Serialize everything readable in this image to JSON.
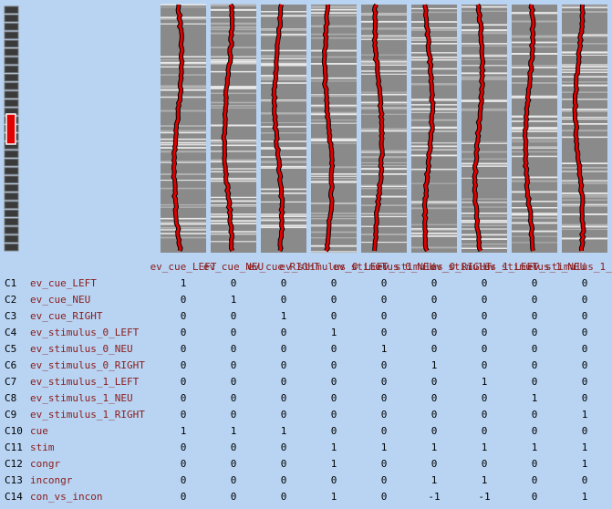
{
  "columns": [
    "ev_cue_LEFT",
    "ev_cue_NEU",
    "ev_cue_RIGHT",
    "ev_stimulus_0_LEFT",
    "ev_stimulus_0_NEU",
    "ev_stimulus_0_RIGHT",
    "ev_stimulus_1_LEFT",
    "ev_stimulus_1_NEU",
    "ev_stimulus_1_RIGHT"
  ],
  "contrasts": [
    {
      "id": "C1",
      "name": "ev_cue_LEFT",
      "weights": [
        1,
        0,
        0,
        0,
        0,
        0,
        0,
        0,
        0
      ]
    },
    {
      "id": "C2",
      "name": "ev_cue_NEU",
      "weights": [
        0,
        1,
        0,
        0,
        0,
        0,
        0,
        0,
        0
      ]
    },
    {
      "id": "C3",
      "name": "ev_cue_RIGHT",
      "weights": [
        0,
        0,
        1,
        0,
        0,
        0,
        0,
        0,
        0
      ]
    },
    {
      "id": "C4",
      "name": "ev_stimulus_0_LEFT",
      "weights": [
        0,
        0,
        0,
        1,
        0,
        0,
        0,
        0,
        0
      ]
    },
    {
      "id": "C5",
      "name": "ev_stimulus_0_NEU",
      "weights": [
        0,
        0,
        0,
        0,
        1,
        0,
        0,
        0,
        0
      ]
    },
    {
      "id": "C6",
      "name": "ev_stimulus_0_RIGHT",
      "weights": [
        0,
        0,
        0,
        0,
        0,
        1,
        0,
        0,
        0
      ]
    },
    {
      "id": "C7",
      "name": "ev_stimulus_1_LEFT",
      "weights": [
        0,
        0,
        0,
        0,
        0,
        0,
        1,
        0,
        0
      ]
    },
    {
      "id": "C8",
      "name": "ev_stimulus_1_NEU",
      "weights": [
        0,
        0,
        0,
        0,
        0,
        0,
        0,
        1,
        0
      ]
    },
    {
      "id": "C9",
      "name": "ev_stimulus_1_RIGHT",
      "weights": [
        0,
        0,
        0,
        0,
        0,
        0,
        0,
        0,
        1
      ]
    },
    {
      "id": "C10",
      "name": "cue",
      "weights": [
        1,
        1,
        1,
        0,
        0,
        0,
        0,
        0,
        0
      ]
    },
    {
      "id": "C11",
      "name": "stim",
      "weights": [
        0,
        0,
        0,
        1,
        1,
        1,
        1,
        1,
        1
      ]
    },
    {
      "id": "C12",
      "name": "congr",
      "weights": [
        0,
        0,
        0,
        1,
        0,
        0,
        0,
        0,
        1
      ]
    },
    {
      "id": "C13",
      "name": "incongr",
      "weights": [
        0,
        0,
        0,
        0,
        0,
        1,
        1,
        0,
        0
      ]
    },
    {
      "id": "C14",
      "name": "con_vs_incon",
      "weights": [
        0,
        0,
        0,
        1,
        0,
        -1,
        -1,
        0,
        1
      ]
    }
  ]
}
